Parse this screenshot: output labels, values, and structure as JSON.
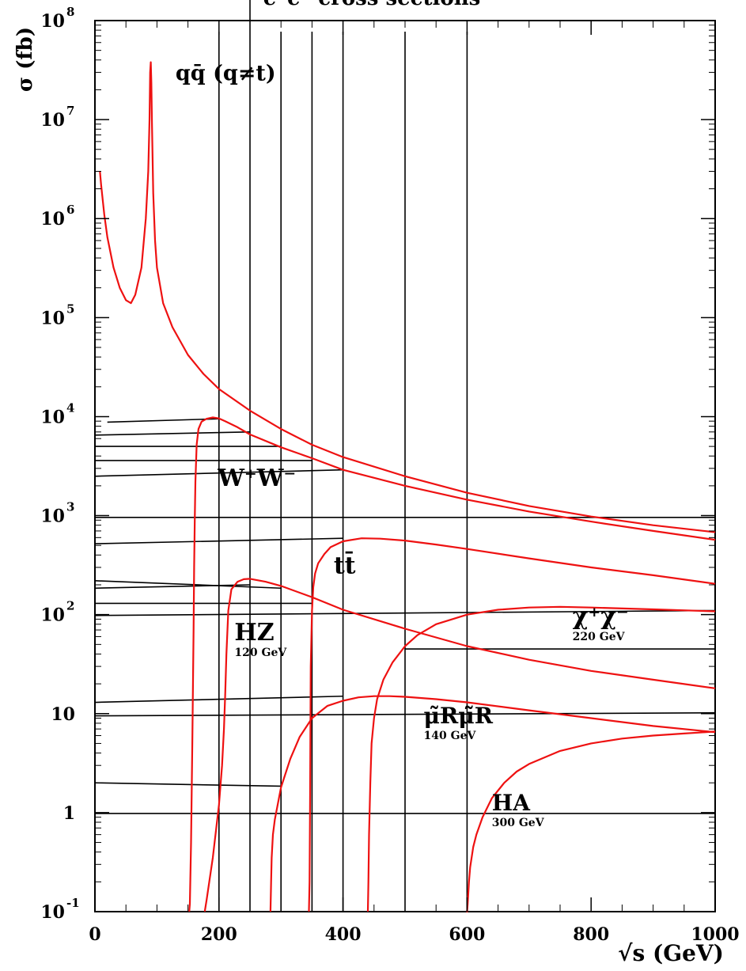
{
  "chart_data": {
    "type": "line",
    "title": "e⁺e⁻ cross sections",
    "xlabel": "√s (GeV)",
    "ylabel": "σ (fb)",
    "xlim": [
      0,
      1000
    ],
    "ylim": [
      0.1,
      100000000
    ],
    "yscale": "log",
    "grid": false,
    "x_ticks": [
      {
        "value": 0,
        "label": "0"
      },
      {
        "value": 200,
        "label": "200"
      },
      {
        "value": 400,
        "label": "400"
      },
      {
        "value": 600,
        "label": "600"
      },
      {
        "value": 800,
        "label": "800"
      },
      {
        "value": 1000,
        "label": "1000"
      }
    ],
    "y_ticks": [
      {
        "value": 0.1,
        "base": "10",
        "exp": "-1"
      },
      {
        "value": 1,
        "base": "1",
        "exp": ""
      },
      {
        "value": 10,
        "base": "10",
        "exp": ""
      },
      {
        "value": 100,
        "base": "10",
        "exp": "2"
      },
      {
        "value": 1000,
        "base": "10",
        "exp": "3"
      },
      {
        "value": 10000,
        "base": "10",
        "exp": "4"
      },
      {
        "value": 100000,
        "base": "10",
        "exp": "5"
      },
      {
        "value": 1000000,
        "base": "10",
        "exp": "6"
      },
      {
        "value": 10000000,
        "base": "10",
        "exp": "7"
      },
      {
        "value": 100000000,
        "base": "10",
        "exp": "8"
      }
    ],
    "series": [
      {
        "name": "qq̄ (q≠t)",
        "color": "#ee1111",
        "x": [
          8,
          10,
          15,
          20,
          30,
          40,
          50,
          58,
          65,
          75,
          82,
          86,
          88,
          89,
          90,
          91,
          92,
          94,
          97,
          100,
          110,
          125,
          150,
          175,
          200,
          250,
          300,
          350,
          400,
          500,
          600,
          700,
          800,
          900,
          1000
        ],
        "y": [
          3000000,
          2200000,
          1100000,
          650000,
          320000,
          200000,
          150000,
          140000,
          170000,
          320000,
          1000000,
          3000000,
          10000000,
          30000000,
          38000000,
          24000000,
          9000000,
          1800000,
          600000,
          320000,
          140000,
          80000,
          42000,
          27000,
          19000,
          11500,
          7500,
          5200,
          3900,
          2500,
          1700,
          1250,
          980,
          800,
          680
        ]
      },
      {
        "name": "W⁺W⁻",
        "color": "#ee1111",
        "x": [
          152,
          153,
          155,
          157,
          159,
          160,
          161,
          162,
          164,
          167,
          172,
          180,
          190,
          200,
          210,
          230,
          250,
          300,
          350,
          400,
          500,
          600,
          700,
          800,
          900,
          1000
        ],
        "y": [
          0.1,
          0.12,
          0.5,
          5,
          70,
          300,
          900,
          2200,
          5200,
          7500,
          8900,
          9500,
          9800,
          9600,
          9000,
          7800,
          6600,
          4900,
          3800,
          2900,
          2000,
          1450,
          1100,
          870,
          700,
          570
        ]
      },
      {
        "name": "tt̄",
        "color": "#ee1111",
        "x": [
          345,
          346,
          347,
          348,
          350,
          352,
          355,
          360,
          370,
          380,
          400,
          430,
          460,
          500,
          550,
          600,
          700,
          800,
          900,
          1000
        ],
        "y": [
          0.1,
          0.2,
          1.5,
          30,
          110,
          190,
          260,
          330,
          410,
          480,
          550,
          590,
          585,
          560,
          510,
          460,
          370,
          300,
          250,
          205
        ]
      },
      {
        "name": "HZ",
        "color": "#ee1111",
        "x": [
          177,
          180,
          190,
          200,
          205,
          208,
          210,
          212,
          215,
          220,
          230,
          240,
          250,
          275,
          300,
          350,
          400,
          500,
          600,
          700,
          800,
          900,
          1000
        ],
        "y": [
          0.1,
          0.13,
          0.35,
          1.2,
          3,
          7,
          15,
          40,
          110,
          180,
          215,
          228,
          230,
          215,
          195,
          150,
          112,
          72,
          48,
          35,
          27,
          22,
          18
        ]
      },
      {
        "name": "χ⁺χ⁻",
        "color": "#ee1111",
        "x": [
          440,
          441,
          442,
          444,
          446,
          450,
          455,
          465,
          480,
          500,
          520,
          550,
          600,
          650,
          700,
          750,
          800,
          900,
          1000
        ],
        "y": [
          0.1,
          0.2,
          0.6,
          2,
          5,
          9,
          14,
          22,
          33,
          48,
          62,
          80,
          100,
          112,
          118,
          120,
          118,
          113,
          108
        ]
      },
      {
        "name": "μ̃Rμ̃R",
        "color": "#ee1111",
        "x": [
          283,
          284,
          285,
          287,
          290,
          300,
          315,
          330,
          350,
          375,
          400,
          425,
          450,
          475,
          500,
          550,
          600,
          700,
          800,
          900,
          1000
        ],
        "y": [
          0.1,
          0.2,
          0.35,
          0.6,
          0.85,
          1.8,
          3.5,
          5.8,
          9,
          12,
          13.5,
          14.6,
          15,
          15,
          14.8,
          14,
          13,
          10.8,
          9,
          7.5,
          6.5
        ]
      },
      {
        "name": "HA",
        "color": "#ee1111",
        "x": [
          599,
          600,
          601,
          603,
          605,
          610,
          615,
          625,
          640,
          660,
          680,
          700,
          750,
          800,
          850,
          900,
          950,
          1000
        ],
        "y": [
          0.1,
          0.1,
          0.12,
          0.2,
          0.28,
          0.45,
          0.6,
          0.9,
          1.4,
          2,
          2.6,
          3.1,
          4.2,
          5,
          5.6,
          6,
          6.3,
          6.6
        ]
      }
    ],
    "labels": [
      {
        "text": "qq̄ (q≠t)",
        "x": 130,
        "y": 25000000,
        "size": 27
      },
      {
        "text": "W⁺W⁻",
        "x": 198,
        "y": 2000,
        "size": 30
      },
      {
        "text": "tt̄",
        "x": 385,
        "y": 260,
        "size": 30
      },
      {
        "text": "HZ",
        "x": 225,
        "y": 55,
        "size": 30,
        "mass": "120 GeV"
      },
      {
        "text": "χ⁺χ⁻",
        "x": 770,
        "y": 80,
        "size": 30,
        "mass": "220 GeV"
      },
      {
        "text": "μ̃Rμ̃R",
        "x": 530,
        "y": 8,
        "size": 28,
        "mass": "140 GeV"
      },
      {
        "text": "HA",
        "x": 640,
        "y": 1.05,
        "size": 28,
        "mass": "300 GeV"
      }
    ]
  }
}
